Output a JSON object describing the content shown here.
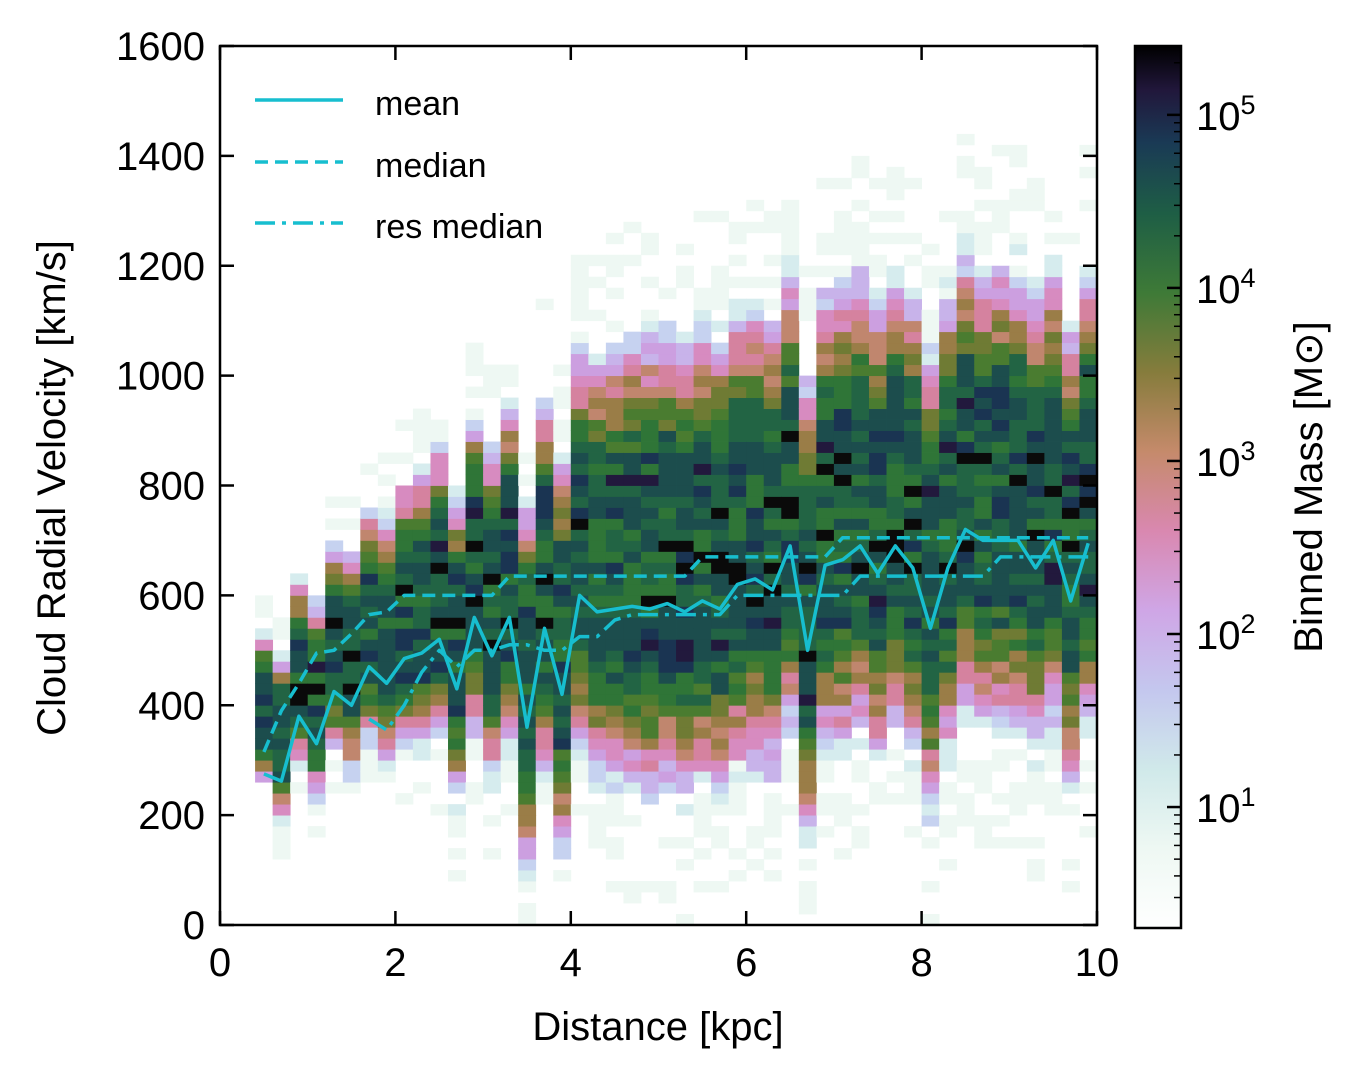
{
  "chart_data": {
    "type": "heatmap",
    "title": "",
    "xlabel": "Distance [kpc]",
    "ylabel": "Cloud Radial Velocity [km/s]",
    "xlim": [
      0,
      10
    ],
    "ylim": [
      0,
      1600
    ],
    "xticks": [
      "0",
      "2",
      "4",
      "6",
      "8",
      "10"
    ],
    "yticks": [
      "0",
      "200",
      "400",
      "600",
      "800",
      "1000",
      "1200",
      "1400",
      "1600"
    ],
    "colorbar": {
      "label": "Binned Mass [M⊙]",
      "scale": "log",
      "range": [
        2,
        250000
      ],
      "ticks": [
        {
          "base": "10",
          "exp": "1",
          "value": 10
        },
        {
          "base": "10",
          "exp": "2",
          "value": 100
        },
        {
          "base": "10",
          "exp": "3",
          "value": 1000
        },
        {
          "base": "10",
          "exp": "4",
          "value": 10000
        },
        {
          "base": "10",
          "exp": "5",
          "value": 100000
        }
      ],
      "colormap": "cubehelix_r"
    },
    "heatmap": {
      "x_start": 0.4,
      "bin_width_kpc": 0.2,
      "bin_height_kms": 20,
      "description": "2D histogram of binned mass; bulk of mass between ~400 and ~900 km/s, envelope rising with distance"
    },
    "series": [
      {
        "name": "mean",
        "style": "solid",
        "color": "#17becf",
        "x": [
          0.5,
          0.7,
          0.9,
          1.1,
          1.3,
          1.5,
          1.7,
          1.9,
          2.1,
          2.3,
          2.5,
          2.7,
          2.9,
          3.1,
          3.3,
          3.5,
          3.7,
          3.9,
          4.1,
          4.3,
          4.5,
          4.7,
          4.9,
          5.1,
          5.3,
          5.5,
          5.7,
          5.9,
          6.1,
          6.3,
          6.5,
          6.7,
          6.9,
          7.1,
          7.3,
          7.5,
          7.7,
          7.9,
          8.1,
          8.3,
          8.5,
          8.7,
          8.9,
          9.1,
          9.3,
          9.5,
          9.7,
          9.9
        ],
        "y": [
          275,
          262,
          380,
          330,
          425,
          400,
          470,
          440,
          485,
          495,
          520,
          430,
          560,
          490,
          560,
          360,
          540,
          420,
          600,
          570,
          575,
          580,
          575,
          585,
          570,
          590,
          575,
          620,
          630,
          610,
          690,
          500,
          655,
          665,
          690,
          640,
          690,
          650,
          540,
          650,
          720,
          700,
          700,
          700,
          650,
          700,
          590,
          695
        ]
      },
      {
        "name": "median",
        "style": "dashed",
        "color": "#17becf",
        "x": [
          0.5,
          0.7,
          0.9,
          1.1,
          1.3,
          1.5,
          1.7,
          1.9,
          2.1,
          2.3,
          2.5,
          2.7,
          2.9,
          3.1,
          3.3,
          3.5,
          3.7,
          3.9,
          4.1,
          4.3,
          4.5,
          4.7,
          4.9,
          5.1,
          5.3,
          5.5,
          5.7,
          5.9,
          6.1,
          6.3,
          6.5,
          6.7,
          6.9,
          7.1,
          7.3,
          7.5,
          7.7,
          7.9,
          8.1,
          8.3,
          8.5,
          8.7,
          8.9,
          9.1,
          9.3,
          9.5,
          9.7,
          9.9
        ],
        "y": [
          315,
          390,
          440,
          495,
          500,
          530,
          565,
          570,
          600,
          600,
          600,
          600,
          600,
          600,
          635,
          635,
          635,
          635,
          635,
          635,
          635,
          635,
          635,
          635,
          635,
          670,
          670,
          670,
          670,
          670,
          670,
          670,
          670,
          705,
          705,
          705,
          705,
          705,
          705,
          705,
          705,
          705,
          705,
          705,
          705,
          705,
          705,
          705
        ]
      },
      {
        "name": "res median",
        "style": "dashdot",
        "color": "#17becf",
        "x": [
          1.7,
          1.9,
          2.1,
          2.3,
          2.5,
          2.7,
          2.9,
          3.1,
          3.3,
          3.5,
          3.7,
          3.9,
          4.1,
          4.3,
          4.5,
          4.7,
          4.9,
          5.1,
          5.3,
          5.5,
          5.7,
          5.9,
          6.1,
          6.3,
          6.5,
          6.7,
          6.9,
          7.1,
          7.3,
          7.5,
          7.7,
          7.9,
          8.1,
          8.3,
          8.5,
          8.7,
          8.9,
          9.1,
          9.3,
          9.5,
          9.7,
          9.9
        ],
        "y": [
          375,
          355,
          400,
          460,
          500,
          470,
          500,
          500,
          510,
          510,
          500,
          500,
          525,
          525,
          555,
          565,
          565,
          565,
          565,
          565,
          565,
          600,
          600,
          600,
          600,
          600,
          600,
          600,
          635,
          635,
          635,
          635,
          635,
          635,
          635,
          635,
          670,
          670,
          670,
          670,
          670,
          670
        ]
      }
    ],
    "legend": {
      "position": "top-left",
      "entries": [
        "mean",
        "median",
        "res median"
      ]
    }
  }
}
